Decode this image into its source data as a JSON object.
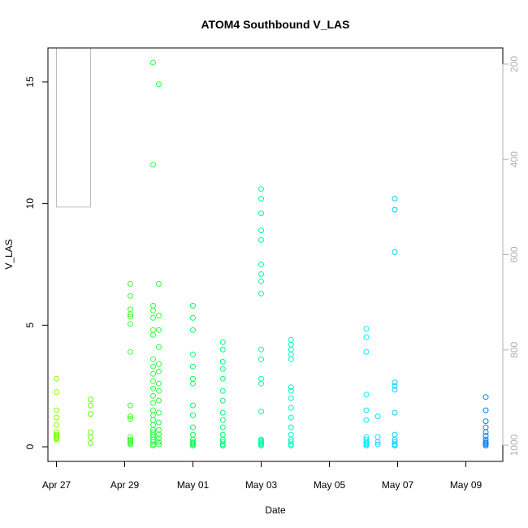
{
  "chart_data": {
    "type": "scatter",
    "title": "ATOM4 Southbound V_LAS",
    "xlabel": "Date",
    "ylabel": "V_LAS",
    "x_ticks": [
      {
        "date": "2019-04-27",
        "label": "Apr 27"
      },
      {
        "date": "2019-04-29",
        "label": "Apr 29"
      },
      {
        "date": "2019-05-01",
        "label": "May 01"
      },
      {
        "date": "2019-05-03",
        "label": "May 03"
      },
      {
        "date": "2019-05-05",
        "label": "May 05"
      },
      {
        "date": "2019-05-07",
        "label": "May 07"
      },
      {
        "date": "2019-05-09",
        "label": "May 09"
      }
    ],
    "xlim": [
      "2019-04-26 18:00",
      "2019-05-10 02:00"
    ],
    "ylim": [
      -0.6,
      16.4
    ],
    "y_ticks": [
      0,
      5,
      10,
      15
    ],
    "right_axis": {
      "ticks": [
        200,
        400,
        600,
        800,
        1000
      ],
      "ylim": [
        1034,
        166
      ],
      "color": "#b0b0b0"
    },
    "grid": false,
    "legend": "none",
    "colormap": [
      "#80ff00",
      "#00ff60",
      "#00ffff",
      "#0080ff"
    ],
    "points": [
      [
        "2019-04-27 00:00",
        0.3
      ],
      [
        "2019-04-27 00:00",
        0.5
      ],
      [
        "2019-04-27 00:00",
        0.4
      ],
      [
        "2019-04-27 00:00",
        0.6
      ],
      [
        "2019-04-27 00:00",
        0.45
      ],
      [
        "2019-04-27 00:00",
        0.35
      ],
      [
        "2019-04-27 00:00",
        0.9
      ],
      [
        "2019-04-27 00:00",
        1.2
      ],
      [
        "2019-04-27 00:00",
        1.5
      ],
      [
        "2019-04-27 00:00",
        2.25
      ],
      [
        "2019-04-27 00:00",
        2.8
      ],
      [
        "2019-04-28 00:00",
        0.15
      ],
      [
        "2019-04-28 00:00",
        0.6
      ],
      [
        "2019-04-28 00:00",
        0.4
      ],
      [
        "2019-04-28 00:00",
        1.35
      ],
      [
        "2019-04-28 00:00",
        1.7
      ],
      [
        "2019-04-28 00:00",
        1.95
      ],
      [
        "2019-04-29 04:00",
        0.1
      ],
      [
        "2019-04-29 04:00",
        0.2
      ],
      [
        "2019-04-29 04:00",
        0.25
      ],
      [
        "2019-04-29 04:00",
        0.3
      ],
      [
        "2019-04-29 04:00",
        0.4
      ],
      [
        "2019-04-29 04:00",
        0.15
      ],
      [
        "2019-04-29 04:00",
        1.15
      ],
      [
        "2019-04-29 04:00",
        1.25
      ],
      [
        "2019-04-29 04:00",
        1.7
      ],
      [
        "2019-04-29 04:00",
        3.9
      ],
      [
        "2019-04-29 04:00",
        5.05
      ],
      [
        "2019-04-29 04:00",
        5.35
      ],
      [
        "2019-04-29 04:00",
        5.45
      ],
      [
        "2019-04-29 04:00",
        5.65
      ],
      [
        "2019-04-29 04:00",
        6.2
      ],
      [
        "2019-04-29 04:00",
        6.7
      ],
      [
        "2019-04-29 20:00",
        0.05
      ],
      [
        "2019-04-29 20:00",
        0.1
      ],
      [
        "2019-04-29 20:00",
        0.2
      ],
      [
        "2019-04-29 20:00",
        0.3
      ],
      [
        "2019-04-29 20:00",
        0.4
      ],
      [
        "2019-04-29 20:00",
        0.5
      ],
      [
        "2019-04-29 20:00",
        0.6
      ],
      [
        "2019-04-29 20:00",
        0.7
      ],
      [
        "2019-04-29 20:00",
        0.9
      ],
      [
        "2019-04-29 20:00",
        1.1
      ],
      [
        "2019-04-29 20:00",
        1.3
      ],
      [
        "2019-04-29 20:00",
        1.5
      ],
      [
        "2019-04-29 20:00",
        1.8
      ],
      [
        "2019-04-29 20:00",
        2.1
      ],
      [
        "2019-04-29 20:00",
        2.4
      ],
      [
        "2019-04-29 20:00",
        2.7
      ],
      [
        "2019-04-29 20:00",
        3.0
      ],
      [
        "2019-04-29 20:00",
        3.3
      ],
      [
        "2019-04-29 20:00",
        3.6
      ],
      [
        "2019-04-29 20:00",
        4.6
      ],
      [
        "2019-04-29 20:00",
        4.8
      ],
      [
        "2019-04-29 20:00",
        5.3
      ],
      [
        "2019-04-29 20:00",
        5.6
      ],
      [
        "2019-04-29 20:00",
        5.8
      ],
      [
        "2019-04-29 20:00",
        11.6
      ],
      [
        "2019-04-29 20:00",
        15.8
      ],
      [
        "2019-04-30 00:00",
        0.1
      ],
      [
        "2019-04-30 00:00",
        0.2
      ],
      [
        "2019-04-30 00:00",
        0.35
      ],
      [
        "2019-04-30 00:00",
        0.5
      ],
      [
        "2019-04-30 00:00",
        0.7
      ],
      [
        "2019-04-30 00:00",
        1.0
      ],
      [
        "2019-04-30 00:00",
        1.4
      ],
      [
        "2019-04-30 00:00",
        1.9
      ],
      [
        "2019-04-30 00:00",
        2.3
      ],
      [
        "2019-04-30 00:00",
        2.6
      ],
      [
        "2019-04-30 00:00",
        3.1
      ],
      [
        "2019-04-30 00:00",
        3.4
      ],
      [
        "2019-04-30 00:00",
        4.1
      ],
      [
        "2019-04-30 00:00",
        4.8
      ],
      [
        "2019-04-30 00:00",
        5.4
      ],
      [
        "2019-04-30 00:00",
        6.7
      ],
      [
        "2019-04-30 00:00",
        14.9
      ],
      [
        "2019-05-01 00:00",
        0.05
      ],
      [
        "2019-05-01 00:00",
        0.1
      ],
      [
        "2019-05-01 00:00",
        0.15
      ],
      [
        "2019-05-01 00:00",
        0.2
      ],
      [
        "2019-05-01 00:00",
        0.3
      ],
      [
        "2019-05-01 00:00",
        0.5
      ],
      [
        "2019-05-01 00:00",
        0.8
      ],
      [
        "2019-05-01 00:00",
        1.3
      ],
      [
        "2019-05-01 00:00",
        1.7
      ],
      [
        "2019-05-01 00:00",
        2.6
      ],
      [
        "2019-05-01 00:00",
        2.8
      ],
      [
        "2019-05-01 00:00",
        3.3
      ],
      [
        "2019-05-01 00:00",
        3.8
      ],
      [
        "2019-05-01 00:00",
        4.8
      ],
      [
        "2019-05-01 00:00",
        5.3
      ],
      [
        "2019-05-01 00:00",
        5.8
      ],
      [
        "2019-05-01 21:00",
        0.05
      ],
      [
        "2019-05-01 21:00",
        0.1
      ],
      [
        "2019-05-01 21:00",
        0.2
      ],
      [
        "2019-05-01 21:00",
        0.3
      ],
      [
        "2019-05-01 21:00",
        0.5
      ],
      [
        "2019-05-01 21:00",
        0.8
      ],
      [
        "2019-05-01 21:00",
        1.1
      ],
      [
        "2019-05-01 21:00",
        1.4
      ],
      [
        "2019-05-01 21:00",
        1.9
      ],
      [
        "2019-05-01 21:00",
        2.3
      ],
      [
        "2019-05-01 21:00",
        2.8
      ],
      [
        "2019-05-01 21:00",
        3.2
      ],
      [
        "2019-05-01 21:00",
        3.5
      ],
      [
        "2019-05-01 21:00",
        4.0
      ],
      [
        "2019-05-01 21:00",
        4.3
      ],
      [
        "2019-05-03 00:00",
        0.05
      ],
      [
        "2019-05-03 00:00",
        0.1
      ],
      [
        "2019-05-03 00:00",
        0.15
      ],
      [
        "2019-05-03 00:00",
        0.2
      ],
      [
        "2019-05-03 00:00",
        0.25
      ],
      [
        "2019-05-03 00:00",
        0.3
      ],
      [
        "2019-05-03 00:00",
        1.45
      ],
      [
        "2019-05-03 00:00",
        2.6
      ],
      [
        "2019-05-03 00:00",
        2.8
      ],
      [
        "2019-05-03 00:00",
        3.6
      ],
      [
        "2019-05-03 00:00",
        4.0
      ],
      [
        "2019-05-03 00:00",
        6.3
      ],
      [
        "2019-05-03 00:00",
        6.8
      ],
      [
        "2019-05-03 00:00",
        7.1
      ],
      [
        "2019-05-03 00:00",
        7.5
      ],
      [
        "2019-05-03 00:00",
        8.5
      ],
      [
        "2019-05-03 00:00",
        8.9
      ],
      [
        "2019-05-03 00:00",
        9.6
      ],
      [
        "2019-05-03 00:00",
        10.2
      ],
      [
        "2019-05-03 00:00",
        10.6
      ],
      [
        "2019-05-03 21:00",
        0.05
      ],
      [
        "2019-05-03 21:00",
        0.1
      ],
      [
        "2019-05-03 21:00",
        0.2
      ],
      [
        "2019-05-03 21:00",
        0.3
      ],
      [
        "2019-05-03 21:00",
        0.5
      ],
      [
        "2019-05-03 21:00",
        0.8
      ],
      [
        "2019-05-03 21:00",
        1.2
      ],
      [
        "2019-05-03 21:00",
        1.6
      ],
      [
        "2019-05-03 21:00",
        2.0
      ],
      [
        "2019-05-03 21:00",
        2.3
      ],
      [
        "2019-05-03 21:00",
        2.45
      ],
      [
        "2019-05-03 21:00",
        3.6
      ],
      [
        "2019-05-03 21:00",
        3.8
      ],
      [
        "2019-05-03 21:00",
        4.0
      ],
      [
        "2019-05-03 21:00",
        4.2
      ],
      [
        "2019-05-03 21:00",
        4.4
      ],
      [
        "2019-05-06 02:00",
        0.05
      ],
      [
        "2019-05-06 02:00",
        0.1
      ],
      [
        "2019-05-06 02:00",
        0.15
      ],
      [
        "2019-05-06 02:00",
        0.2
      ],
      [
        "2019-05-06 02:00",
        0.3
      ],
      [
        "2019-05-06 02:00",
        0.4
      ],
      [
        "2019-05-06 02:00",
        1.1
      ],
      [
        "2019-05-06 02:00",
        1.5
      ],
      [
        "2019-05-06 02:00",
        2.15
      ],
      [
        "2019-05-06 02:00",
        3.9
      ],
      [
        "2019-05-06 02:00",
        4.5
      ],
      [
        "2019-05-06 02:00",
        4.85
      ],
      [
        "2019-05-06 10:00",
        0.1
      ],
      [
        "2019-05-06 10:00",
        0.2
      ],
      [
        "2019-05-06 10:00",
        0.4
      ],
      [
        "2019-05-06 10:00",
        1.25
      ],
      [
        "2019-05-06 22:00",
        0.05
      ],
      [
        "2019-05-06 22:00",
        0.1
      ],
      [
        "2019-05-06 22:00",
        0.2
      ],
      [
        "2019-05-06 22:00",
        0.3
      ],
      [
        "2019-05-06 22:00",
        0.5
      ],
      [
        "2019-05-06 22:00",
        1.4
      ],
      [
        "2019-05-06 22:00",
        2.35
      ],
      [
        "2019-05-06 22:00",
        2.5
      ],
      [
        "2019-05-06 22:00",
        2.65
      ],
      [
        "2019-05-06 22:00",
        8.0
      ],
      [
        "2019-05-06 22:00",
        9.75
      ],
      [
        "2019-05-06 22:00",
        10.2
      ],
      [
        "2019-05-09 14:00",
        0.05
      ],
      [
        "2019-05-09 14:00",
        0.1
      ],
      [
        "2019-05-09 14:00",
        0.15
      ],
      [
        "2019-05-09 14:00",
        0.2
      ],
      [
        "2019-05-09 14:00",
        0.3
      ],
      [
        "2019-05-09 14:00",
        0.45
      ],
      [
        "2019-05-09 14:00",
        0.6
      ],
      [
        "2019-05-09 14:00",
        0.8
      ],
      [
        "2019-05-09 14:00",
        1.05
      ],
      [
        "2019-05-09 14:00",
        1.5
      ],
      [
        "2019-05-09 14:00",
        2.05
      ]
    ],
    "depth_trace": [
      [
        "2019-04-27 00:00",
        166
      ],
      [
        "2019-04-27 00:00",
        500
      ],
      [
        "2019-04-28 00:00",
        500
      ],
      [
        "2019-04-28 00:00",
        166
      ]
    ]
  }
}
